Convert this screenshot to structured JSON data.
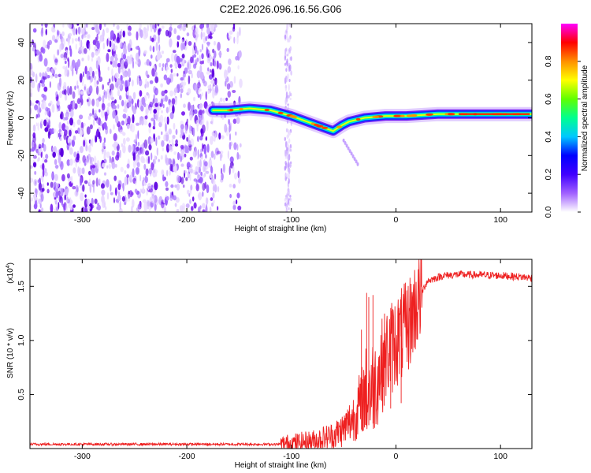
{
  "title": "C2E2.2026.096.16.56.G06",
  "chart_data": [
    {
      "type": "heatmap",
      "name": "spectrogram",
      "xlabel": "Height of straight line (km)",
      "ylabel": "Frequency (Hz)",
      "xlim": [
        -350,
        130
      ],
      "ylim": [
        -50,
        50
      ],
      "x_ticks": [
        -300,
        -200,
        -100,
        0,
        100
      ],
      "y_ticks": [
        -40,
        -20,
        0,
        20,
        40
      ],
      "x_tick_labels": [
        "-300",
        "-200",
        "-100",
        "0",
        "100"
      ],
      "y_tick_labels": [
        "-40",
        "-20",
        "0",
        "20",
        "40"
      ],
      "colorbar": {
        "label": "Normalized spectral amplitude",
        "range": [
          0,
          1
        ],
        "ticks": [
          0.0,
          0.2,
          0.4,
          0.6,
          0.8
        ],
        "tick_labels": [
          "0.0",
          "0.2",
          "0.4",
          "0.6",
          "0.8"
        ],
        "colors": [
          "#ffffff",
          "#a060ff",
          "#4000ff",
          "#0000ff",
          "#00c8ff",
          "#00ff90",
          "#60ff00",
          "#ffff00",
          "#ff9000",
          "#ff0000",
          "#ff00ff"
        ]
      },
      "noise_region": {
        "x_from": -350,
        "x_to": -148,
        "extra_strip_x": -103
      },
      "signal_track": [
        {
          "x": -175,
          "f": 4
        },
        {
          "x": -160,
          "f": 4
        },
        {
          "x": -140,
          "f": 5
        },
        {
          "x": -120,
          "f": 4
        },
        {
          "x": -100,
          "f": 1
        },
        {
          "x": -80,
          "f": -3
        },
        {
          "x": -60,
          "f": -7
        },
        {
          "x": -52,
          "f": -4
        },
        {
          "x": -45,
          "f": -2
        },
        {
          "x": -30,
          "f": 0
        },
        {
          "x": -10,
          "f": 1
        },
        {
          "x": 10,
          "f": 1
        },
        {
          "x": 40,
          "f": 2
        },
        {
          "x": 80,
          "f": 2
        },
        {
          "x": 130,
          "f": 2
        }
      ]
    },
    {
      "type": "line",
      "name": "snr",
      "xlabel": "Height of straight line (km)",
      "ylabel": "SNR (10 * v/v)",
      "y_scale_label": "(x10",
      "y_scale_exp": "4",
      "xlim": [
        -350,
        130
      ],
      "ylim": [
        0,
        1.75
      ],
      "x_ticks": [
        -300,
        -200,
        -100,
        0,
        100
      ],
      "y_ticks": [
        0.5,
        1.0,
        1.5
      ],
      "x_tick_labels": [
        "-300",
        "-200",
        "-100",
        "0",
        "100"
      ],
      "y_tick_labels": [
        "0.5",
        "1.0",
        "1.5"
      ],
      "color": "#ee2020",
      "envelope": [
        {
          "x": -350,
          "y": 0.04
        },
        {
          "x": -200,
          "y": 0.04
        },
        {
          "x": -110,
          "y": 0.04
        },
        {
          "x": -90,
          "y": 0.06
        },
        {
          "x": -80,
          "y": 0.07
        },
        {
          "x": -60,
          "y": 0.12
        },
        {
          "x": -50,
          "y": 0.18
        },
        {
          "x": -40,
          "y": 0.3
        },
        {
          "x": -30,
          "y": 0.5
        },
        {
          "x": -20,
          "y": 0.6
        },
        {
          "x": -10,
          "y": 0.85
        },
        {
          "x": 0,
          "y": 1.0
        },
        {
          "x": 10,
          "y": 1.1
        },
        {
          "x": 20,
          "y": 1.35
        },
        {
          "x": 30,
          "y": 1.55
        },
        {
          "x": 45,
          "y": 1.6
        },
        {
          "x": 60,
          "y": 1.61
        },
        {
          "x": 100,
          "y": 1.6
        },
        {
          "x": 130,
          "y": 1.58
        }
      ],
      "spikes": [
        {
          "x": -28,
          "y": 1.44
        },
        {
          "x": -26,
          "y": 1.4
        },
        {
          "x": -22,
          "y": 1.42
        },
        {
          "x": -33,
          "y": 1.1
        },
        {
          "x": -5,
          "y": 1.3
        },
        {
          "x": 5,
          "y": 1.4
        }
      ]
    }
  ]
}
